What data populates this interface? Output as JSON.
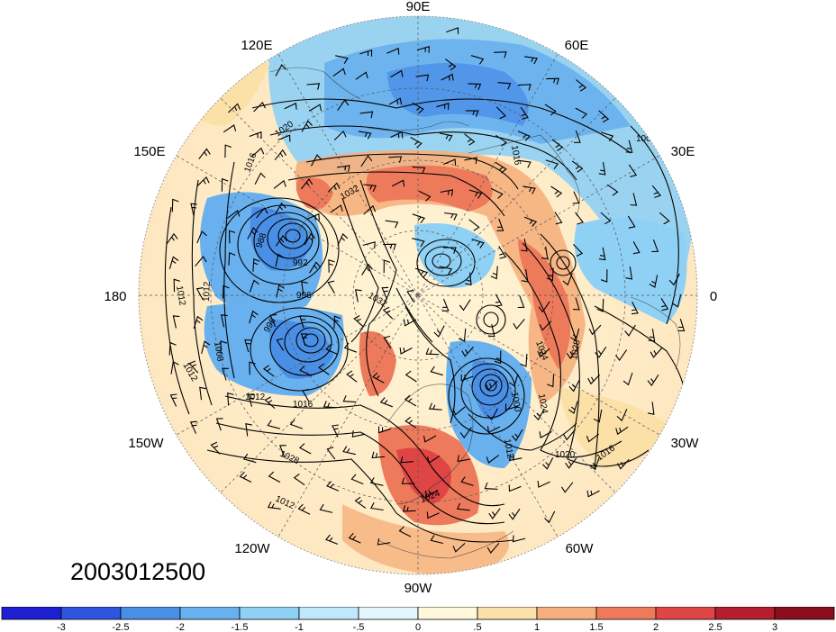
{
  "date_stamp": "2003012500",
  "longitude_labels": [
    {
      "text": "90E",
      "lon": 90
    },
    {
      "text": "60E",
      "lon": 60
    },
    {
      "text": "120E",
      "lon": 120
    },
    {
      "text": "30E",
      "lon": 30
    },
    {
      "text": "150E",
      "lon": 150
    },
    {
      "text": "180",
      "lon": 180
    },
    {
      "text": "0",
      "lon": 0
    },
    {
      "text": "150W",
      "lon": -150
    },
    {
      "text": "30W",
      "lon": -30
    },
    {
      "text": "120W",
      "lon": -120
    },
    {
      "text": "60W",
      "lon": -60
    },
    {
      "text": "90W",
      "lon": -90
    }
  ],
  "contour_labels": [
    "1008",
    "1020",
    "1016",
    "1016",
    "1032",
    "988",
    "992",
    "996",
    "1012",
    "1012",
    "996",
    "1008",
    "1012",
    "1012",
    "1016",
    "1028",
    "1012",
    "1024",
    "1032",
    "1024",
    "1028",
    "1024",
    "1020",
    "1016",
    "1000",
    "1012"
  ],
  "colorbar": {
    "ticks": [
      "-3",
      "-2.5",
      "-2",
      "-1.5",
      "-1",
      "-.5",
      "0",
      ".5",
      "1",
      "1.5",
      "2",
      "2.5",
      "3"
    ],
    "colors": [
      "#1e1ed2",
      "#2d55e1",
      "#4a8fe6",
      "#68b0ee",
      "#8fd0f5",
      "#bfe9fb",
      "#e4f6fd",
      "#fff8dc",
      "#fbe0a8",
      "#f6b07d",
      "#ee7a5c",
      "#e04545",
      "#b51e2d",
      "#8c0d1e"
    ]
  }
}
